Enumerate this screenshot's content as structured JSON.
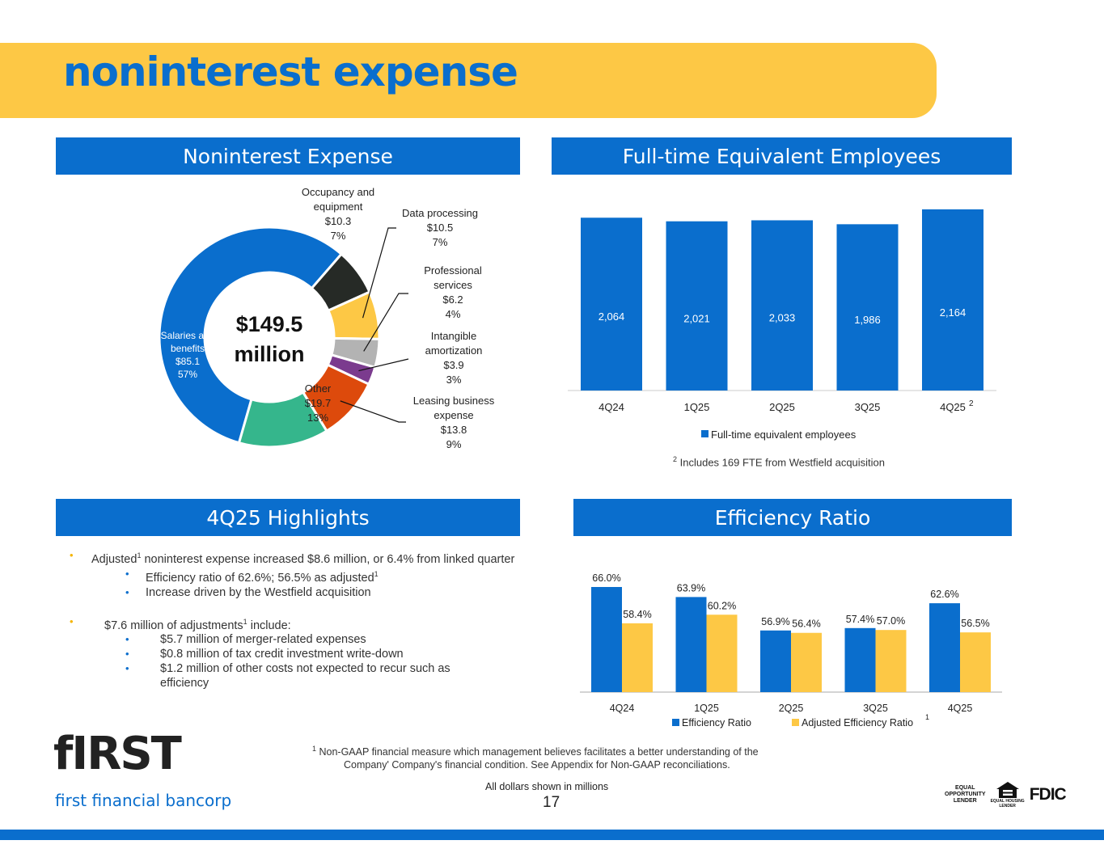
{
  "header": {
    "title": "noninterest expense"
  },
  "panels": {
    "expense": "Noninterest Expense",
    "fte": "Full-time Equivalent  Employees",
    "highlights": "4Q25 Highlights",
    "efficiency": "Efficiency Ratio"
  },
  "chart_data": [
    {
      "type": "pie",
      "title": "Noninterest Expense",
      "center_label": [
        "$149.5",
        "million"
      ],
      "slices": [
        {
          "label": [
            "Salaries and",
            "benefits"
          ],
          "value": 85.1,
          "value_label": "$85.1",
          "percent": "57%",
          "color": "#0a6ecd"
        },
        {
          "label": [
            "Occupancy and",
            "equipment"
          ],
          "value": 10.3,
          "value_label": "$10.3",
          "percent": "7%",
          "color": "#262a26"
        },
        {
          "label": [
            "Data processing"
          ],
          "value": 10.5,
          "value_label": "$10.5",
          "percent": "7%",
          "color": "#fdc845"
        },
        {
          "label": [
            "Professional",
            "services"
          ],
          "value": 6.2,
          "value_label": "$6.2",
          "percent": "4%",
          "color": "#b3b3b3"
        },
        {
          "label": [
            "Intangible",
            "amortization"
          ],
          "value": 3.9,
          "value_label": "$3.9",
          "percent": "3%",
          "color": "#7b3b8e"
        },
        {
          "label": [
            "Leasing business",
            "expense"
          ],
          "value": 13.8,
          "value_label": "$13.8",
          "percent": "9%",
          "color": "#dd4a0c"
        },
        {
          "label": [
            "Other"
          ],
          "value": 19.7,
          "value_label": "$19.7",
          "percent": "13%",
          "color": "#35b68c"
        }
      ]
    },
    {
      "type": "bar",
      "title": "Full-time Equivalent  Employees",
      "categories": [
        "4Q24",
        "1Q25",
        "2Q25",
        "3Q25",
        "4Q25"
      ],
      "category_notes": [
        "",
        "",
        "",
        "",
        "2"
      ],
      "series": [
        {
          "name": "Full-time equivalent employees",
          "values": [
            2064,
            2021,
            2033,
            1986,
            2164
          ],
          "labels": [
            "2,064",
            "2,021",
            "2,033",
            "1,986",
            "2,164"
          ],
          "color": "#0a6ecd"
        }
      ],
      "legend": "bottom",
      "footnote": {
        "mark": "2",
        "text": "Includes 169 FTE from Westfield acquisition"
      }
    },
    {
      "type": "bar",
      "title": "Efficiency Ratio",
      "categories": [
        "4Q24",
        "1Q25",
        "2Q25",
        "3Q25",
        "4Q25"
      ],
      "series": [
        {
          "name": "Efficiency Ratio",
          "values": [
            66.0,
            63.9,
            56.9,
            57.4,
            62.6
          ],
          "labels": [
            "66.0%",
            "63.9%",
            "56.9%",
            "57.4%",
            "62.6%"
          ],
          "color": "#0a6ecd"
        },
        {
          "name": "Adjusted Efficiency Ratio",
          "name_note": "1",
          "values": [
            58.4,
            60.2,
            56.4,
            57.0,
            56.5
          ],
          "labels": [
            "58.4%",
            "60.2%",
            "56.4%",
            "57.0%",
            "56.5%"
          ],
          "color": "#fdc845"
        }
      ],
      "legend": "bottom"
    }
  ],
  "highlights": {
    "item1": {
      "pre": "Adjusted",
      "sup": "1",
      "post": " noninterest expense increased $8.6 million, or 6.4% from linked quarter"
    },
    "sub1": [
      {
        "pre": "Efficiency ratio of 62.6%; 56.5% as adjusted",
        "sup": "1"
      },
      {
        "pre": "Increase driven by the Westfield acquisition",
        "sup": ""
      }
    ],
    "item2": {
      "pre": "$7.6 million of adjustments",
      "sup": "1",
      "post": " include:"
    },
    "sub2": [
      "$5.7 million of merger-related expenses",
      "$0.8 million of tax credit investment write-down",
      "$1.2 million of other costs not expected to recur such as efficiency"
    ],
    "bullet": "•"
  },
  "footer": {
    "gaap_mark": "1",
    "gaap_line1": " Non-GAAP financial measure which management believes facilitates a better understanding of the",
    "gaap_line2": "Company' Company's financial condition.  See Appendix for Non-GAAP reconciliations.",
    "dollars_note": "All dollars shown in millions",
    "page_number": "17",
    "logo_word": "fIRST",
    "logo_sub": "first financial bancorp",
    "eol": [
      "EQUAL",
      "OPPORTUNITY",
      "LENDER"
    ],
    "ehl": [
      "EQUAL HOUSING",
      "LENDER"
    ],
    "fdic": "FDIC"
  }
}
